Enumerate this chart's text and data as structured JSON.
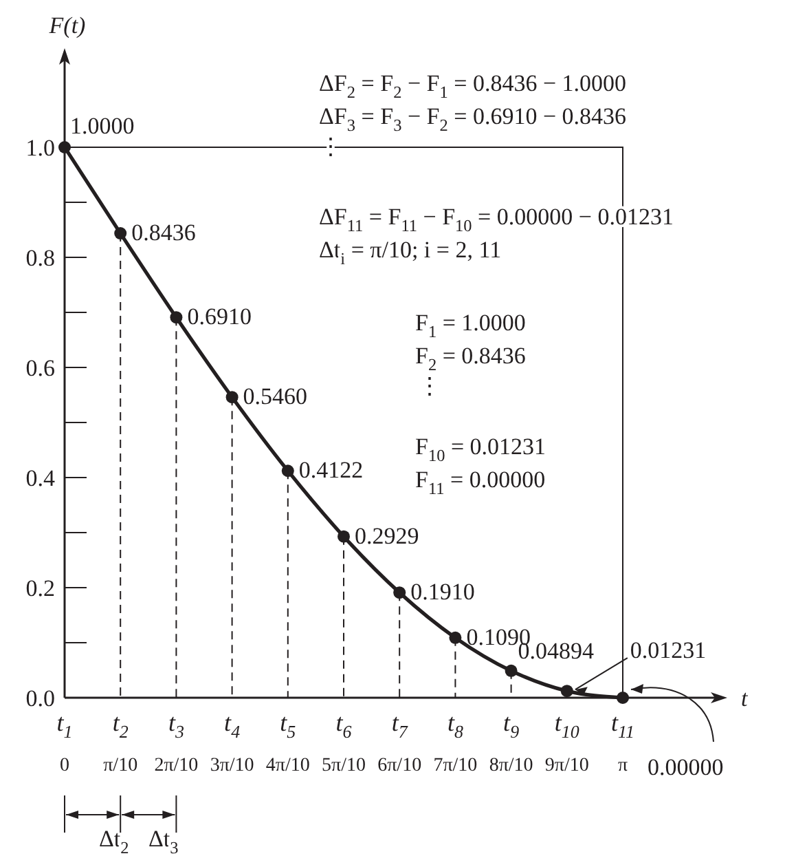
{
  "chart_data": {
    "type": "line",
    "xlabel": "t",
    "ylabel": "F(t)",
    "color": "#231f20",
    "marker": "circle",
    "line_style": "solid",
    "categories": [
      "t$_{1}$\n0",
      "t$_{2}$\nπ/10",
      "t$_{3}$\n2π/10",
      "t$_{4}$\n3π/10",
      "t$_{5}$\n4π/10",
      "t$_{6}$\n5π/10",
      "t$_{7}$\n6π/10",
      "t$_{8}$\n7π/10",
      "t$_{9}$\n8π/10",
      "t$_{10}$\n9π/10",
      "t$_{11}$\nπ"
    ],
    "values": [
      1.0,
      0.8436,
      0.691,
      0.546,
      0.4122,
      0.2929,
      0.191,
      0.109,
      0.04894,
      0.01231,
      0.0
    ],
    "value_labels": [
      "1.0000",
      "0.8436",
      "0.6910",
      "0.5460",
      "0.4122",
      "0.2929",
      "0.1910",
      "0.1090",
      "0.04894",
      "0.01231",
      "0.00000"
    ],
    "ylim": [
      0,
      1.17
    ],
    "yticks": [
      {
        "value": 0,
        "label": "0.0"
      },
      {
        "value": 0.1,
        "label": null
      },
      0.2,
      {
        "value": 0.3,
        "label": null
      },
      0.4,
      {
        "value": 0.5,
        "label": null
      },
      0.6,
      {
        "value": 0.7,
        "label": null
      },
      0.8,
      {
        "value": 0.9,
        "label": null
      },
      {
        "value": 1,
        "label": "1.0"
      }
    ],
    "annotations": [
      "ΔF$_{2}$ = F$_{2}$ − F$_{1}$ = 0.8436 − 1.0000",
      "ΔF$_{3}$ = F$_{3}$ − F$_{2}$ = 0.6910 − 0.8436",
      "⋮",
      "ΔF$_{11}$ = F$_{11}$ − F$_{10}$ = 0.00000 − 0.01231",
      "Δt$_{i}$ = π/10; i = 2, 11",
      "F$_{1}$ = 1.0000",
      "F$_{2}$ = 0.8436",
      "⋮",
      "F$_{10}$ = 0.01231",
      "F$_{11}$ = 0.00000",
      "Δt$_{2}$",
      "Δt$_{3}$"
    ]
  }
}
